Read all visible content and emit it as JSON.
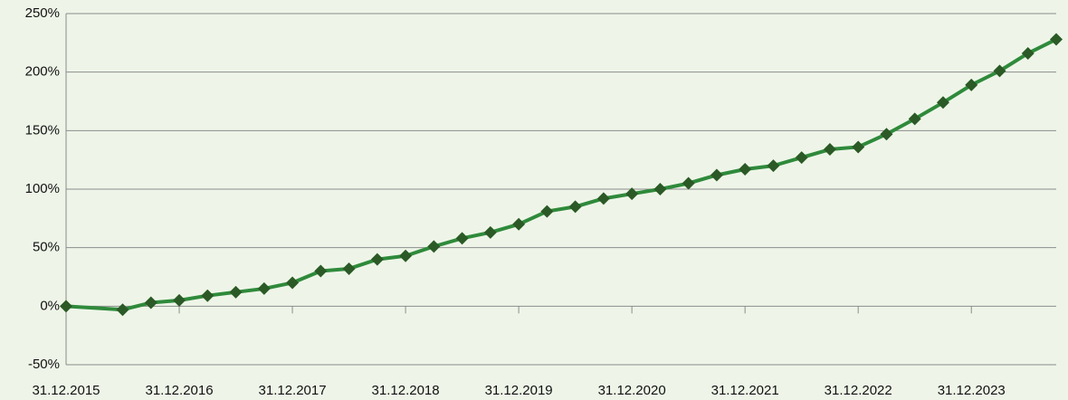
{
  "chart_data": {
    "type": "line",
    "series": [
      {
        "color": "#2f8a3b",
        "marker_color": "#2b5a26",
        "x": [
          0,
          2,
          3,
          4,
          5,
          6,
          7,
          8,
          9,
          10,
          11,
          12,
          13,
          14,
          15,
          16,
          17,
          18,
          19,
          20,
          21,
          22,
          23,
          24,
          25,
          26,
          27,
          28,
          29,
          30,
          31,
          32,
          33,
          34,
          35
        ],
        "values": [
          0,
          -3,
          3,
          5,
          9,
          12,
          15,
          20,
          30,
          32,
          40,
          43,
          51,
          58,
          63,
          70,
          81,
          85,
          92,
          96,
          100,
          105,
          112,
          117,
          120,
          127,
          134,
          136,
          147,
          160,
          174,
          189,
          201,
          216,
          228
        ]
      }
    ],
    "xlim": [
      0,
      35
    ],
    "xticks": [
      {
        "value": 0,
        "label": "31.12.2015"
      },
      {
        "value": 4,
        "label": "31.12.2016"
      },
      {
        "value": 8,
        "label": "31.12.2017"
      },
      {
        "value": 12,
        "label": "31.12.2018"
      },
      {
        "value": 16,
        "label": "31.12.2019"
      },
      {
        "value": 20,
        "label": "31.12.2020"
      },
      {
        "value": 24,
        "label": "31.12.2021"
      },
      {
        "value": 28,
        "label": "31.12.2022"
      },
      {
        "value": 32,
        "label": "31.12.2023"
      }
    ],
    "ylim": [
      -50,
      250
    ],
    "yticks": [
      {
        "value": -50,
        "label": "-50%"
      },
      {
        "value": 0,
        "label": "0%"
      },
      {
        "value": 50,
        "label": "50%"
      },
      {
        "value": 100,
        "label": "100%"
      },
      {
        "value": 150,
        "label": "150%"
      },
      {
        "value": 200,
        "label": "200%"
      },
      {
        "value": 250,
        "label": "250%"
      }
    ],
    "grid": true
  }
}
